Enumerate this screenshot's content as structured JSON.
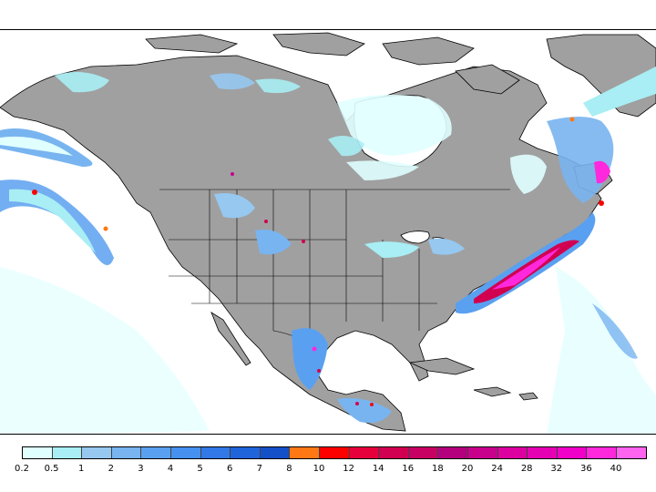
{
  "map": {
    "type": "precipitation-shaded-map",
    "region": "North America",
    "land_color": "#a0a0a0",
    "water_color": "#ffffff",
    "border_color": "#000000"
  },
  "legend": {
    "bins": [
      {
        "color": "#e0ffff"
      },
      {
        "color": "#a8eef4"
      },
      {
        "color": "#96c8f0"
      },
      {
        "color": "#78b4f0"
      },
      {
        "color": "#5aa0f0"
      },
      {
        "color": "#4690f0"
      },
      {
        "color": "#3278e6"
      },
      {
        "color": "#2064dc"
      },
      {
        "color": "#1450c8"
      },
      {
        "color": "#ff7814"
      },
      {
        "color": "#ff0000"
      },
      {
        "color": "#e6003c"
      },
      {
        "color": "#d20050"
      },
      {
        "color": "#c80064"
      },
      {
        "color": "#b4007d"
      },
      {
        "color": "#c8008c"
      },
      {
        "color": "#dc00a0"
      },
      {
        "color": "#e600b4"
      },
      {
        "color": "#f000c8"
      },
      {
        "color": "#ff28dc"
      },
      {
        "color": "#ff64f0"
      }
    ],
    "labels": [
      "0.2",
      "0.5",
      "1",
      "2",
      "3",
      "4",
      "5",
      "6",
      "7",
      "8",
      "10",
      "12",
      "14",
      "16",
      "18",
      "20",
      "24",
      "28",
      "32",
      "36",
      "40"
    ]
  }
}
